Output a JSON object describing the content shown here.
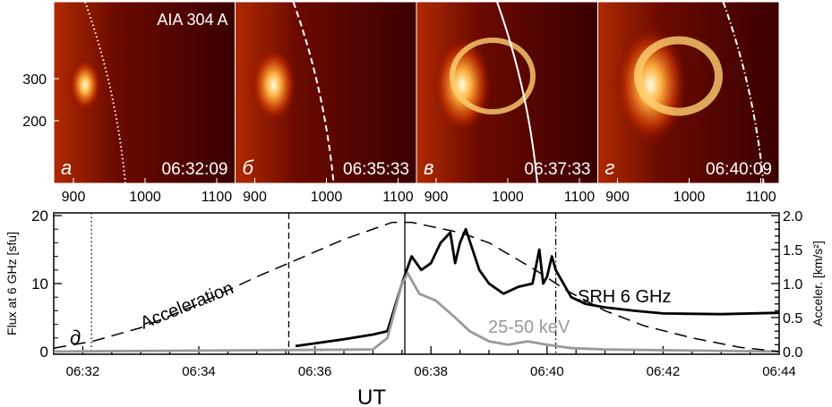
{
  "images": {
    "instrument_label": "AIA 304 A",
    "y_ticks": [
      200,
      300
    ],
    "x_ticks": [
      900,
      1000,
      1100
    ],
    "panels": [
      {
        "letter": "а",
        "time": "06:32:09",
        "limb_style": "dotted"
      },
      {
        "letter": "б",
        "time": "06:35:33",
        "limb_style": "dashed"
      },
      {
        "letter": "в",
        "time": "06:37:33",
        "limb_style": "solid"
      },
      {
        "letter": "г",
        "time": "06:40:09",
        "limb_style": "dash-dot"
      }
    ],
    "colormap": [
      "#2a0000",
      "#7a0a00",
      "#d04000",
      "#ffb040",
      "#ffffe0"
    ]
  },
  "chart_data": {
    "type": "line",
    "panel_letter": "д",
    "xlabel": "UT",
    "ylabel": "Flux at 6 GHz [sfu]",
    "y2label": "Acceler. [km/s²]",
    "xlim": [
      "06:31:30",
      "06:44:00"
    ],
    "x_ticks": [
      "06:32",
      "06:34",
      "06:36",
      "06:38",
      "06:40",
      "06:42",
      "06:44"
    ],
    "ylim": [
      0,
      20
    ],
    "y_ticks": [
      0,
      10,
      20
    ],
    "y2lim": [
      0,
      2.0
    ],
    "y2_ticks": [
      "0.0",
      "0.5",
      "1.0",
      "1.5",
      "2.0"
    ],
    "vertical_lines": [
      {
        "time": "06:32:09",
        "style": "dotted"
      },
      {
        "time": "06:35:33",
        "style": "dashed"
      },
      {
        "time": "06:37:33",
        "style": "solid"
      },
      {
        "time": "06:40:09",
        "style": "dash-dot"
      }
    ],
    "series": [
      {
        "name": "SRH 6 GHz",
        "axis": "left",
        "color": "#000000",
        "x": [
          "06:35:40",
          "06:36:30",
          "06:37:00",
          "06:37:15",
          "06:37:30",
          "06:37:40",
          "06:37:50",
          "06:38:00",
          "06:38:10",
          "06:38:20",
          "06:38:25",
          "06:38:30",
          "06:38:36",
          "06:38:50",
          "06:39:00",
          "06:39:15",
          "06:39:30",
          "06:39:45",
          "06:39:52",
          "06:39:56",
          "06:40:00",
          "06:40:05",
          "06:40:09",
          "06:40:25",
          "06:40:40",
          "06:41:00",
          "06:41:30",
          "06:42:00",
          "06:43:00",
          "06:44:00"
        ],
        "y": [
          0.8,
          1.8,
          2.5,
          3,
          10,
          14,
          12,
          13,
          16,
          17.5,
          13,
          16,
          18,
          12,
          10,
          8.5,
          9.5,
          10,
          15,
          10,
          11,
          14,
          12,
          8,
          7,
          6.5,
          6,
          5.6,
          5.5,
          5.7
        ]
      },
      {
        "name": "25-50 keV",
        "axis": "left",
        "color": "#999999",
        "x": [
          "06:31:30",
          "06:37:00",
          "06:37:15",
          "06:37:30",
          "06:37:36",
          "06:37:48",
          "06:38:05",
          "06:38:25",
          "06:38:40",
          "06:39:00",
          "06:39:20",
          "06:39:40",
          "06:40:00",
          "06:40:25",
          "06:41:00",
          "06:42:00",
          "06:44:00"
        ],
        "y": [
          0,
          0.3,
          2,
          10,
          11.5,
          8.5,
          7.5,
          5,
          3,
          1.5,
          1,
          1.5,
          1,
          0.5,
          0.3,
          0.2,
          0
        ]
      },
      {
        "name": "Acceleration",
        "axis": "right",
        "color": "#000000",
        "style": "dashed",
        "x": [
          "06:31:30",
          "06:32:10",
          "06:33:00",
          "06:34:00",
          "06:35:00",
          "06:35:33",
          "06:36:30",
          "06:37:20",
          "06:37:40",
          "06:38:30",
          "06:39:00",
          "06:39:48",
          "06:40:20",
          "06:41:00",
          "06:41:40",
          "06:42:30",
          "06:43:20",
          "06:44:00"
        ],
        "y": [
          0.05,
          0.15,
          0.35,
          0.7,
          1.1,
          1.3,
          1.65,
          1.9,
          1.9,
          1.75,
          1.6,
          1.2,
          0.9,
          0.6,
          0.38,
          0.2,
          0.06,
          0.0
        ]
      }
    ]
  }
}
